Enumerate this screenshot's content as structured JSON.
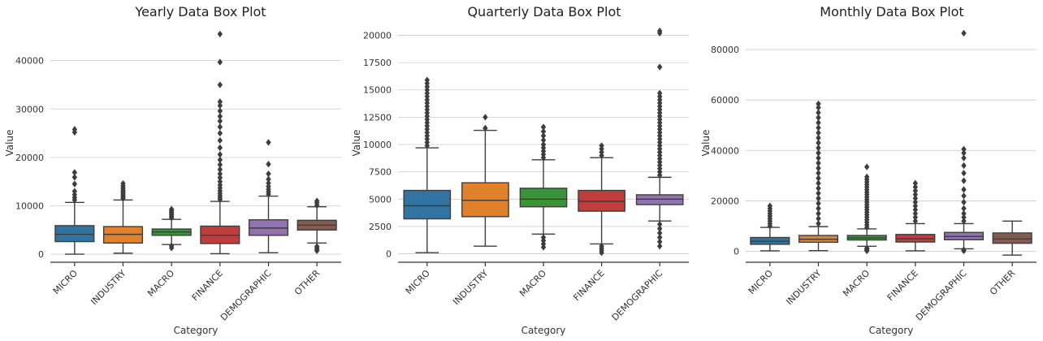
{
  "chart_data": [
    {
      "type": "box",
      "title": "Yearly Data Box Plot",
      "xlabel": "Category",
      "ylabel": "Value",
      "ylim": [
        -1500,
        47500
      ],
      "yticks": [
        0,
        10000,
        20000,
        30000,
        40000
      ],
      "grid": true,
      "categories": [
        "MICRO",
        "INDUSTRY",
        "MACRO",
        "FINANCE",
        "DEMOGRAPHIC",
        "OTHER"
      ],
      "boxes": [
        {
          "category": "MICRO",
          "color": "#3274a1",
          "min": 0,
          "q1": 2600,
          "median": 4100,
          "q3": 5900,
          "max": 10700,
          "outliers": [
            11200,
            11700,
            12300,
            13000,
            14500,
            15900,
            16900,
            25200,
            25800
          ]
        },
        {
          "category": "INDUSTRY",
          "color": "#e1812c",
          "min": 200,
          "q1": 2300,
          "median": 4100,
          "q3": 5700,
          "max": 11200,
          "outliers": [
            11500,
            11800,
            12100,
            12400,
            12700,
            13000,
            13300,
            13700,
            14100,
            14600
          ]
        },
        {
          "category": "MACRO",
          "color": "#3a923a",
          "min": 2000,
          "q1": 3900,
          "median": 4600,
          "q3": 5200,
          "max": 7200,
          "outliers": [
            1300,
            1700,
            7500,
            7800,
            8100,
            8400,
            8700,
            9000,
            9300
          ]
        },
        {
          "category": "FINANCE",
          "color": "#c03d3e",
          "min": 100,
          "q1": 2200,
          "median": 3900,
          "q3": 5800,
          "max": 10900,
          "outliers": [
            11300,
            11700,
            12100,
            12600,
            13100,
            13700,
            14300,
            15000,
            15800,
            16600,
            17500,
            18500,
            19500,
            20600,
            22000,
            23500,
            25000,
            26300,
            27500,
            28500,
            29600,
            30700,
            31500,
            35000,
            39700,
            45500
          ]
        },
        {
          "category": "DEMOGRAPHIC",
          "color": "#9372b2",
          "min": 300,
          "q1": 3900,
          "median": 5400,
          "q3": 7100,
          "max": 12000,
          "outliers": [
            12400,
            12900,
            13400,
            14000,
            14700,
            15500,
            16600,
            18600,
            23100
          ]
        },
        {
          "category": "OTHER",
          "color": "#845b53",
          "min": 2300,
          "q1": 5000,
          "median": 6000,
          "q3": 7000,
          "max": 9800,
          "outliers": [
            700,
            1000,
            1300,
            1600,
            10100,
            10600,
            11000
          ]
        }
      ]
    },
    {
      "type": "box",
      "title": "Quarterly Data Box Plot",
      "xlabel": "Category",
      "ylabel": "Value",
      "ylim": [
        -700,
        21000
      ],
      "yticks": [
        0,
        2500,
        5000,
        7500,
        10000,
        12500,
        15000,
        17500,
        20000
      ],
      "grid": true,
      "categories": [
        "MICRO",
        "INDUSTRY",
        "MACRO",
        "FINANCE",
        "DEMOGRAPHIC"
      ],
      "boxes": [
        {
          "category": "MICRO",
          "color": "#3274a1",
          "min": 100,
          "q1": 3200,
          "median": 4400,
          "q3": 5800,
          "max": 9700,
          "outliers": [
            9900,
            10200,
            10500,
            10800,
            11100,
            11400,
            11700,
            12000,
            12300,
            12600,
            12900,
            13200,
            13500,
            13800,
            14100,
            14400,
            14700,
            15000,
            15300,
            15600,
            15900
          ]
        },
        {
          "category": "INDUSTRY",
          "color": "#e1812c",
          "min": 700,
          "q1": 3400,
          "median": 4900,
          "q3": 6500,
          "max": 11300,
          "outliers": [
            11500,
            12500
          ]
        },
        {
          "category": "MACRO",
          "color": "#3a923a",
          "min": 1800,
          "q1": 4300,
          "median": 5000,
          "q3": 6000,
          "max": 8600,
          "outliers": [
            600,
            900,
            1200,
            1500,
            8800,
            9100,
            9400,
            9700,
            10000,
            10400,
            10800,
            11200,
            11600
          ]
        },
        {
          "category": "FINANCE",
          "color": "#c03d3e",
          "min": 900,
          "q1": 3900,
          "median": 4800,
          "q3": 5800,
          "max": 8800,
          "outliers": [
            100,
            300,
            500,
            700,
            9000,
            9300,
            9600,
            9900
          ]
        },
        {
          "category": "DEMOGRAPHIC",
          "color": "#9372b2",
          "min": 3000,
          "q1": 4500,
          "median": 5000,
          "q3": 5400,
          "max": 7000,
          "outliers": [
            700,
            1100,
            1500,
            1900,
            2300,
            2700,
            7200,
            7500,
            7800,
            8100,
            8400,
            8700,
            9000,
            9300,
            9600,
            9900,
            10200,
            10500,
            10800,
            11100,
            11400,
            11700,
            12000,
            12300,
            12600,
            12900,
            13200,
            13500,
            13800,
            14100,
            14400,
            14700,
            17100,
            20200,
            20400
          ]
        }
      ]
    },
    {
      "type": "box",
      "title": "Monthly Data Box Plot",
      "xlabel": "Category",
      "ylabel": "Value",
      "ylim": [
        -4000,
        90000
      ],
      "yticks": [
        0,
        20000,
        40000,
        60000,
        80000
      ],
      "grid": true,
      "categories": [
        "MICRO",
        "INDUSTRY",
        "MACRO",
        "FINANCE",
        "DEMOGRAPHIC",
        "OTHER"
      ],
      "boxes": [
        {
          "category": "MICRO",
          "color": "#3274a1",
          "min": 200,
          "q1": 2800,
          "median": 4000,
          "q3": 5500,
          "max": 9500,
          "outliers": [
            10000,
            11000,
            12000,
            13000,
            14000,
            15000,
            16000,
            17000,
            18000
          ]
        },
        {
          "category": "INDUSTRY",
          "color": "#e1812c",
          "min": 300,
          "q1": 3600,
          "median": 4800,
          "q3": 6300,
          "max": 9800,
          "outliers": [
            11000,
            13000,
            15000,
            17000,
            19000,
            21000,
            23000,
            25000,
            27000,
            29000,
            31000,
            33000,
            35000,
            37000,
            39000,
            41000,
            43000,
            45000,
            47000,
            49000,
            51000,
            53000,
            55000,
            57000,
            58500
          ]
        },
        {
          "category": "MACRO",
          "color": "#3a923a",
          "min": 2000,
          "q1": 4500,
          "median": 5300,
          "q3": 6300,
          "max": 8900,
          "outliers": [
            200,
            500,
            900,
            1300,
            9500,
            10500,
            11500,
            12500,
            13500,
            14500,
            15500,
            16500,
            17500,
            18500,
            19500,
            20500,
            21500,
            22500,
            23500,
            24500,
            25500,
            26500,
            27500,
            28500,
            29500,
            33500
          ]
        },
        {
          "category": "FINANCE",
          "color": "#c03d3e",
          "min": 200,
          "q1": 3700,
          "median": 5000,
          "q3": 6700,
          "max": 11000,
          "outliers": [
            12000,
            13500,
            15000,
            16500,
            18000,
            19500,
            21000,
            22500,
            24000,
            25500,
            27000
          ]
        },
        {
          "category": "DEMOGRAPHIC",
          "color": "#9372b2",
          "min": 1000,
          "q1": 4600,
          "median": 5900,
          "q3": 7500,
          "max": 11000,
          "outliers": [
            200,
            600,
            12000,
            13500,
            15000,
            17000,
            19500,
            22000,
            24500,
            28000,
            31000,
            34000,
            37000,
            39000,
            40500,
            86500
          ]
        },
        {
          "category": "OTHER",
          "color": "#845b53",
          "min": -1500,
          "q1": 3200,
          "median": 4900,
          "q3": 7300,
          "max": 12000,
          "outliers": []
        }
      ]
    }
  ]
}
